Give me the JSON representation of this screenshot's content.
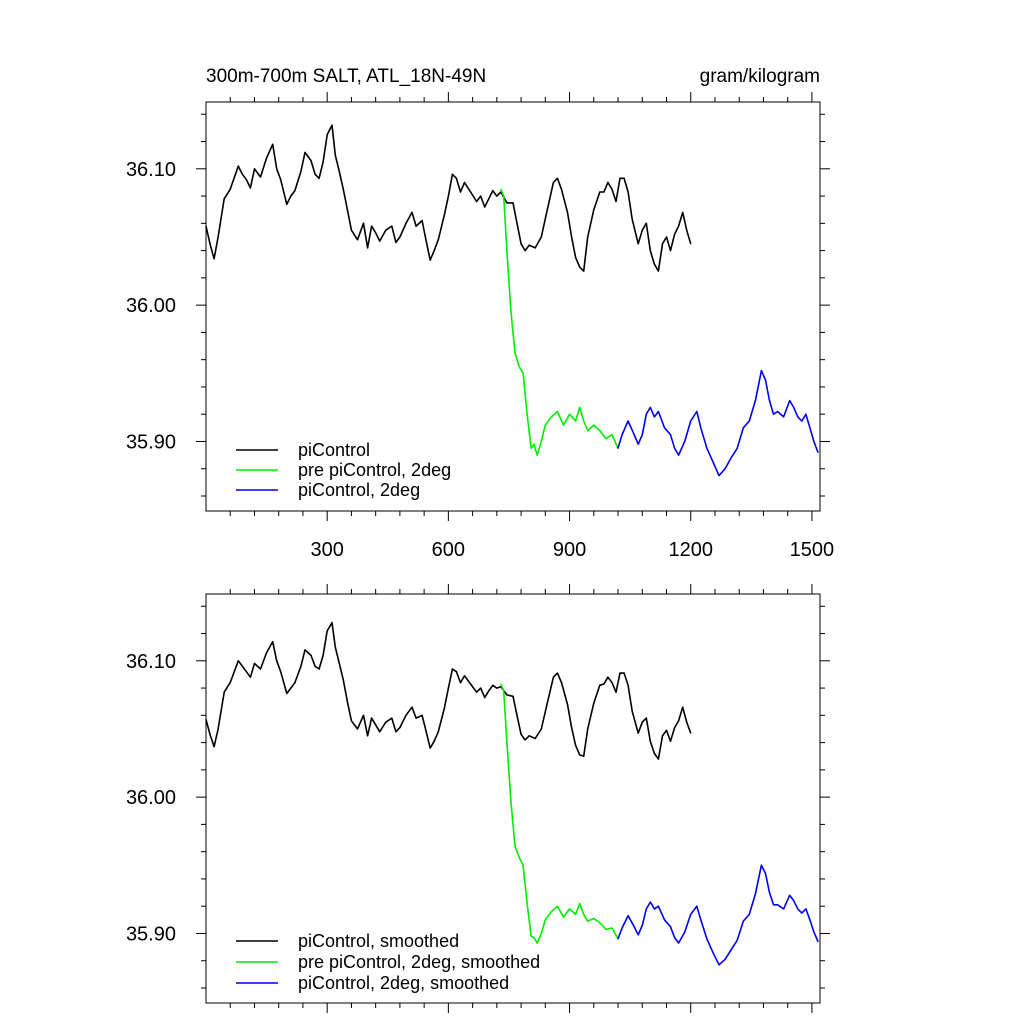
{
  "colors": {
    "piControl": "#000000",
    "pre_piControl_2deg": "#00ee00",
    "piControl_2deg": "#0000ee"
  },
  "chart_data": [
    {
      "type": "line",
      "title": "300m-700m SALT, ATL_18N-49N",
      "units": "gram/kilogram",
      "xlim": [
        0,
        1520
      ],
      "ylim": [
        35.849,
        36.149
      ],
      "xticks": [
        300,
        600,
        900,
        1200,
        1500
      ],
      "xtick_labels": [
        "300",
        "600",
        "900",
        "1200",
        "1500"
      ],
      "yticks": [
        36.1,
        36.0,
        35.9
      ],
      "ytick_labels": [
        "36.10",
        "36.00",
        "35.90"
      ],
      "legend": "bottom-left",
      "grid": false,
      "series": [
        {
          "name": "piControl",
          "color_key": "piControl",
          "x": [
            0,
            10,
            20,
            30,
            45,
            60,
            80,
            90,
            100,
            110,
            120,
            135,
            150,
            165,
            175,
            185,
            200,
            210,
            220,
            235,
            245,
            260,
            270,
            280,
            290,
            300,
            312,
            320,
            330,
            340,
            350,
            360,
            375,
            390,
            400,
            410,
            420,
            430,
            445,
            460,
            470,
            480,
            495,
            510,
            520,
            535,
            545,
            555,
            565,
            575,
            590,
            600,
            610,
            620,
            630,
            640,
            655,
            670,
            680,
            690,
            700,
            710,
            720,
            730,
            745,
            760,
            770,
            780,
            790,
            800,
            815,
            830,
            845,
            860,
            870,
            880,
            895,
            905,
            915,
            925,
            935,
            945,
            960,
            975,
            985,
            995,
            1005,
            1015,
            1025,
            1035,
            1045,
            1055,
            1070,
            1080,
            1090,
            1100,
            1110,
            1120,
            1130,
            1140,
            1150,
            1160,
            1170,
            1180,
            1190,
            1200
          ],
          "y": [
            36.058,
            36.045,
            36.034,
            36.05,
            36.078,
            36.085,
            36.102,
            36.096,
            36.092,
            36.086,
            36.1,
            36.094,
            36.108,
            36.118,
            36.1,
            36.092,
            36.074,
            36.08,
            36.084,
            36.098,
            36.112,
            36.106,
            36.096,
            36.093,
            36.105,
            36.125,
            36.132,
            36.11,
            36.098,
            36.085,
            36.07,
            36.055,
            36.048,
            36.06,
            36.042,
            36.058,
            36.053,
            36.047,
            36.055,
            36.058,
            36.046,
            36.05,
            36.06,
            36.068,
            36.058,
            36.062,
            36.047,
            36.033,
            36.04,
            36.048,
            36.066,
            36.08,
            36.096,
            36.093,
            36.083,
            36.09,
            36.083,
            36.076,
            36.08,
            36.072,
            36.078,
            36.084,
            36.08,
            36.083,
            36.075,
            36.075,
            36.06,
            36.045,
            36.04,
            36.044,
            36.042,
            36.05,
            36.07,
            36.09,
            36.093,
            36.085,
            36.068,
            36.05,
            36.035,
            36.028,
            36.025,
            36.05,
            36.07,
            36.083,
            36.083,
            36.09,
            36.085,
            36.076,
            36.093,
            36.093,
            36.083,
            36.063,
            36.045,
            36.055,
            36.06,
            36.04,
            36.03,
            36.025,
            36.045,
            36.05,
            36.04,
            36.052,
            36.058,
            36.068,
            36.055,
            36.045
          ]
        },
        {
          "name": "pre piControl, 2deg",
          "color_key": "pre_piControl_2deg",
          "x": [
            730,
            737,
            745,
            755,
            765,
            775,
            785,
            795,
            805,
            812,
            820,
            830,
            840,
            855,
            870,
            885,
            900,
            915,
            925,
            935,
            945,
            960,
            975,
            990,
            1005,
            1020
          ],
          "y": [
            36.085,
            36.08,
            36.04,
            35.995,
            35.965,
            35.955,
            35.95,
            35.92,
            35.895,
            35.898,
            35.89,
            35.9,
            35.912,
            35.918,
            35.922,
            35.912,
            35.92,
            35.915,
            35.925,
            35.915,
            35.908,
            35.912,
            35.908,
            35.902,
            35.905,
            35.895
          ]
        },
        {
          "name": "piControl, 2deg",
          "color_key": "piControl_2deg",
          "x": [
            1020,
            1030,
            1045,
            1060,
            1070,
            1080,
            1090,
            1100,
            1110,
            1120,
            1135,
            1150,
            1160,
            1170,
            1185,
            1200,
            1215,
            1225,
            1240,
            1255,
            1270,
            1285,
            1300,
            1315,
            1330,
            1345,
            1360,
            1375,
            1385,
            1395,
            1405,
            1415,
            1430,
            1445,
            1455,
            1465,
            1475,
            1485,
            1495,
            1505,
            1515
          ],
          "y": [
            35.895,
            35.905,
            35.915,
            35.905,
            35.898,
            35.905,
            35.92,
            35.925,
            35.918,
            35.922,
            35.91,
            35.905,
            35.895,
            35.89,
            35.9,
            35.915,
            35.922,
            35.91,
            35.895,
            35.885,
            35.875,
            35.88,
            35.888,
            35.895,
            35.91,
            35.915,
            35.93,
            35.952,
            35.945,
            35.93,
            35.92,
            35.922,
            35.918,
            35.93,
            35.925,
            35.918,
            35.915,
            35.92,
            35.91,
            35.9,
            35.892
          ]
        }
      ]
    },
    {
      "type": "line",
      "xlim": [
        0,
        1520
      ],
      "ylim": [
        35.849,
        36.149
      ],
      "xticks": [
        300,
        600,
        900,
        1200,
        1500
      ],
      "yticks": [
        36.1,
        36.0,
        35.9
      ],
      "ytick_labels": [
        "36.10",
        "36.00",
        "35.90"
      ],
      "legend": "bottom-left",
      "grid": false,
      "series": [
        {
          "name": "piControl, smoothed",
          "color_key": "piControl",
          "x": [
            0,
            10,
            20,
            30,
            45,
            60,
            80,
            90,
            100,
            110,
            120,
            135,
            150,
            165,
            175,
            185,
            200,
            210,
            220,
            235,
            245,
            260,
            270,
            280,
            290,
            300,
            312,
            320,
            330,
            340,
            350,
            360,
            375,
            390,
            400,
            410,
            420,
            430,
            445,
            460,
            470,
            480,
            495,
            510,
            520,
            535,
            545,
            555,
            565,
            575,
            590,
            600,
            610,
            620,
            630,
            640,
            655,
            670,
            680,
            690,
            700,
            710,
            720,
            730,
            745,
            760,
            770,
            780,
            790,
            800,
            815,
            830,
            845,
            860,
            870,
            880,
            895,
            905,
            915,
            925,
            935,
            945,
            960,
            975,
            985,
            995,
            1005,
            1015,
            1025,
            1035,
            1045,
            1055,
            1070,
            1080,
            1090,
            1100,
            1110,
            1120,
            1130,
            1140,
            1150,
            1160,
            1170,
            1180,
            1190,
            1200
          ],
          "y": [
            36.057,
            36.046,
            36.037,
            36.05,
            36.077,
            36.084,
            36.1,
            36.096,
            36.092,
            36.088,
            36.098,
            36.094,
            36.106,
            36.114,
            36.1,
            36.092,
            36.076,
            36.08,
            36.084,
            36.096,
            36.108,
            36.104,
            36.096,
            36.094,
            36.104,
            36.122,
            36.128,
            36.11,
            36.098,
            36.086,
            36.07,
            36.056,
            36.05,
            36.06,
            36.045,
            36.058,
            36.053,
            36.048,
            36.055,
            36.058,
            36.048,
            36.051,
            36.06,
            36.066,
            36.058,
            36.06,
            36.048,
            36.036,
            36.041,
            36.048,
            36.065,
            36.08,
            36.094,
            36.092,
            36.084,
            36.089,
            36.083,
            36.077,
            36.08,
            36.073,
            36.078,
            36.082,
            36.08,
            36.081,
            36.075,
            36.074,
            36.06,
            36.046,
            36.042,
            36.045,
            36.043,
            36.05,
            36.069,
            36.088,
            36.091,
            36.084,
            36.068,
            36.051,
            36.038,
            36.031,
            36.03,
            36.05,
            36.069,
            36.082,
            36.083,
            36.088,
            36.084,
            36.077,
            36.091,
            36.091,
            36.082,
            36.063,
            36.047,
            36.055,
            36.058,
            36.041,
            36.032,
            36.028,
            36.045,
            36.049,
            36.041,
            36.051,
            36.056,
            36.066,
            36.055,
            36.047
          ]
        },
        {
          "name": "pre piControl, 2deg, smoothed",
          "color_key": "pre_piControl_2deg",
          "x": [
            730,
            737,
            745,
            755,
            765,
            775,
            785,
            795,
            805,
            812,
            820,
            830,
            840,
            855,
            870,
            885,
            900,
            915,
            925,
            935,
            945,
            960,
            975,
            990,
            1005,
            1020
          ],
          "y": [
            36.083,
            36.078,
            36.04,
            35.996,
            35.964,
            35.956,
            35.95,
            35.922,
            35.898,
            35.897,
            35.893,
            35.9,
            35.91,
            35.916,
            35.92,
            35.912,
            35.918,
            35.914,
            35.922,
            35.914,
            35.909,
            35.911,
            35.908,
            35.903,
            35.904,
            35.896
          ]
        },
        {
          "name": "piControl, 2deg, smoothed",
          "color_key": "piControl_2deg",
          "x": [
            1020,
            1030,
            1045,
            1060,
            1070,
            1080,
            1090,
            1100,
            1110,
            1120,
            1135,
            1150,
            1160,
            1170,
            1185,
            1200,
            1215,
            1225,
            1240,
            1255,
            1270,
            1285,
            1300,
            1315,
            1330,
            1345,
            1360,
            1375,
            1385,
            1395,
            1405,
            1415,
            1430,
            1445,
            1455,
            1465,
            1475,
            1485,
            1495,
            1505,
            1515
          ],
          "y": [
            35.896,
            35.904,
            35.913,
            35.905,
            35.899,
            35.906,
            35.918,
            35.923,
            35.918,
            35.92,
            35.91,
            35.905,
            35.897,
            35.893,
            35.901,
            35.914,
            35.92,
            35.91,
            35.896,
            35.886,
            35.877,
            35.881,
            35.888,
            35.895,
            35.909,
            35.914,
            35.929,
            35.95,
            35.944,
            35.93,
            35.921,
            35.921,
            35.918,
            35.928,
            35.924,
            35.918,
            35.915,
            35.918,
            35.91,
            35.901,
            35.894
          ]
        }
      ]
    }
  ]
}
